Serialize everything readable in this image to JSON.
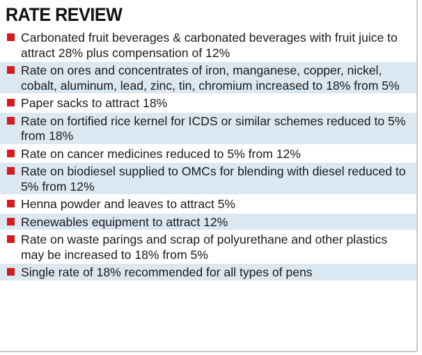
{
  "title": "RATE REVIEW",
  "colors": {
    "bullet": "#d71920",
    "row_shade": "#dbe7f1",
    "text": "#1a1a1a"
  },
  "items": [
    {
      "text": "Carbonated fruit beverages & carbonated beverages with fruit juice to attract 28% plus compensation of 12%",
      "shaded": false
    },
    {
      "text": "Rate on ores and concentrates of iron, manganese, copper, nickel, cobalt, aluminum, lead, zinc, tin, chromium increased to 18% from 5%",
      "shaded": true
    },
    {
      "text": "Paper sacks to attract 18%",
      "shaded": false
    },
    {
      "text": "Rate on fortified rice kernel for ICDS or similar schemes reduced to 5% from 18%",
      "shaded": true
    },
    {
      "text": "Rate on cancer medicines reduced to 5% from 12%",
      "shaded": false
    },
    {
      "text": "Rate on biodiesel supplied to OMCs for blending with diesel reduced to 5% from 12%",
      "shaded": true
    },
    {
      "text": "Henna powder and leaves to attract 5%",
      "shaded": false
    },
    {
      "text": "Renewables equipment to attract 12%",
      "shaded": true
    },
    {
      "text": "Rate on waste parings and scrap of polyurethane and other plastics may be increased to 18% from 5%",
      "shaded": false
    },
    {
      "text": "Single rate of 18% recommended for all types of pens",
      "shaded": true
    }
  ]
}
